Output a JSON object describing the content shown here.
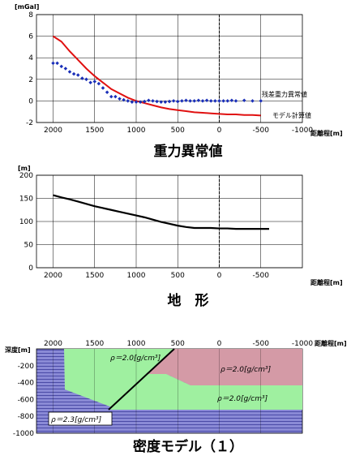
{
  "colors": {
    "grid": "#000000",
    "residual": "#1a2fb8",
    "model": "#e01010",
    "terrain": "#000000",
    "layer_blue": "#8a8ad6",
    "layer_green": "#9ff0a0",
    "layer_pink": "#d49aa6"
  },
  "chart_data": [
    {
      "type": "scatter",
      "title": "重力異常値",
      "ylabel_unit": "[mGal]",
      "xlabel": "距離程[m]",
      "xlim": [
        2200,
        -1000
      ],
      "ylim": [
        -2,
        8
      ],
      "x_ticks": [
        2000,
        1500,
        1000,
        500,
        0,
        -500,
        -1000
      ],
      "y_ticks": [
        8,
        6,
        4,
        2,
        0,
        -2
      ],
      "grid": true,
      "series": [
        {
          "name": "残差重力異常値",
          "style": "points",
          "x": [
            2000,
            1950,
            1900,
            1850,
            1800,
            1750,
            1700,
            1650,
            1600,
            1550,
            1500,
            1450,
            1400,
            1350,
            1300,
            1250,
            1200,
            1150,
            1100,
            1050,
            1000,
            950,
            900,
            850,
            800,
            750,
            700,
            650,
            600,
            550,
            500,
            450,
            400,
            350,
            300,
            250,
            200,
            150,
            100,
            50,
            0,
            -50,
            -100,
            -150,
            -200,
            -300,
            -400,
            -500
          ],
          "y": [
            3.5,
            3.5,
            3.2,
            3.0,
            2.7,
            2.5,
            2.4,
            2.1,
            2.0,
            1.7,
            1.8,
            1.6,
            1.2,
            0.8,
            0.4,
            0.4,
            0.2,
            0.1,
            0.0,
            -0.1,
            -0.1,
            -0.1,
            -0.05,
            0.05,
            0.0,
            -0.05,
            -0.1,
            -0.1,
            -0.05,
            0.0,
            -0.05,
            0.0,
            0.05,
            0.0,
            0.0,
            0.05,
            0.0,
            0.05,
            0.0,
            0.0,
            0.0,
            0.0,
            0.0,
            0.05,
            0.0,
            0.05,
            0.0,
            0.0
          ]
        },
        {
          "name": "モデル計算値",
          "style": "line",
          "x": [
            2000,
            1900,
            1800,
            1700,
            1600,
            1500,
            1400,
            1300,
            1200,
            1100,
            1000,
            900,
            800,
            700,
            600,
            500,
            400,
            300,
            200,
            100,
            0,
            -100,
            -200,
            -300,
            -400,
            -500
          ],
          "y": [
            6.0,
            5.5,
            4.6,
            3.8,
            3.0,
            2.3,
            1.7,
            1.1,
            0.7,
            0.3,
            0.0,
            -0.2,
            -0.4,
            -0.6,
            -0.75,
            -0.85,
            -0.95,
            -1.05,
            -1.1,
            -1.15,
            -1.2,
            -1.25,
            -1.25,
            -1.3,
            -1.3,
            -1.35
          ]
        }
      ]
    },
    {
      "type": "line",
      "title": "地　形",
      "ylabel_unit": "[m]",
      "xlabel": "距離程[m]",
      "xlim": [
        2200,
        -1000
      ],
      "ylim": [
        0,
        200
      ],
      "x_ticks": [
        2000,
        1500,
        1000,
        500,
        0,
        -500
      ],
      "y_ticks": [
        200,
        150,
        100,
        50,
        0
      ],
      "grid": true,
      "series": [
        {
          "x": [
            2000,
            1900,
            1800,
            1700,
            1600,
            1500,
            1400,
            1300,
            1200,
            1100,
            1000,
            900,
            800,
            700,
            600,
            500,
            400,
            300,
            200,
            100,
            0,
            -100,
            -200,
            -300,
            -400,
            -500,
            -600
          ],
          "y": [
            157,
            152,
            148,
            143,
            138,
            133,
            129,
            125,
            121,
            117,
            113,
            109,
            104,
            99,
            95,
            91,
            88,
            86,
            86,
            86,
            85,
            85,
            84,
            84,
            84,
            84,
            84
          ]
        }
      ]
    },
    {
      "type": "diagram",
      "title": "密度モデル（１）",
      "ylabel_unit": "深度[m]",
      "xlabel": "距離程[m]",
      "xlim": [
        2200,
        -1000
      ],
      "ylim": [
        -1000,
        0
      ],
      "x_ticks": [
        2000,
        1500,
        1000,
        500,
        0,
        -500,
        -1000
      ],
      "y_ticks": [
        0,
        -200,
        -400,
        -600,
        -800,
        -1000
      ],
      "layers": [
        {
          "label": "ρ＝2.3[g/cm³]",
          "fill": "blue"
        },
        {
          "label": "ρ＝2.0[g/cm³]",
          "fill": "green"
        },
        {
          "label": "ρ＝2.0[g/cm³]",
          "fill": "pink"
        },
        {
          "label": "ρ＝2.0[g/cm³]",
          "fill": "green"
        }
      ]
    }
  ]
}
